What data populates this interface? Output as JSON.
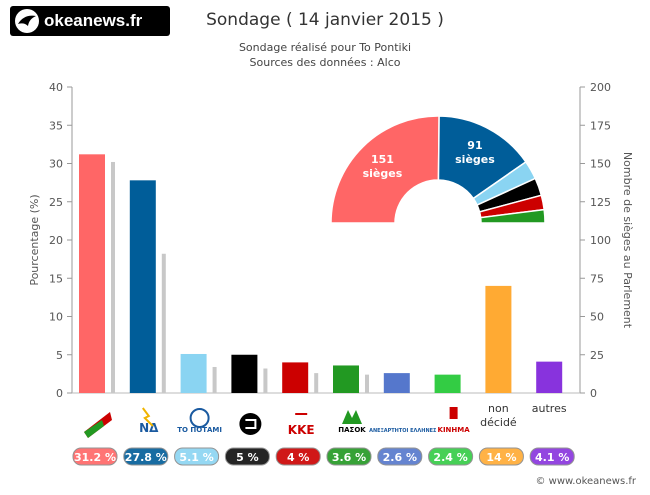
{
  "brand": {
    "logo_text": "okeanews.fr",
    "credit": "© www.okeanews.fr"
  },
  "chart_data": {
    "type": "bar",
    "title": "Sondage ( 14 janvier 2015 )",
    "subtitle_lines": [
      "Sondage réalisé pour To Pontiki",
      "Sources des données : Alco"
    ],
    "ylabel": "Pourcentage (%)",
    "y2label": "Nombre de sièges au Parlement",
    "ylim": [
      0,
      40
    ],
    "y2lim": [
      0,
      200
    ],
    "yticks": [
      0,
      5,
      10,
      15,
      20,
      25,
      30,
      35,
      40
    ],
    "y2ticks": [
      0,
      25,
      50,
      75,
      100,
      125,
      150,
      175,
      200
    ],
    "grid": false,
    "categories": [
      "ΣΥΡΙΖΑ",
      "ΝΔ",
      "ΤΟ ΠΟΤΑΜΙ",
      "ΧΑ",
      "ΚΚΕ",
      "ΠΑΣΟΚ",
      "ΑΝΕΞΑΡΤΗΤΟΙ ΕΛΛΗΝΕΣ",
      "ΚΙΝΗΜΑ",
      "non décidé",
      "autres"
    ],
    "category_text_labels": [
      "",
      "",
      "",
      "",
      "",
      "",
      "",
      "",
      "non décidé",
      "autres"
    ],
    "category_logo_text": [
      "",
      "ΝΔ",
      "ΤΟ ΠΟΤΑΜΙ",
      "",
      "ΚΚΕ",
      "ΠΑΣΟΚ",
      "ΑΝΕΞΑΡΤΗΤΟΙ ΕΛΛΗΝΕΣ",
      "ΚΙΝΗΜΑ",
      "",
      ""
    ],
    "percent_values": [
      31.2,
      27.8,
      5.1,
      5,
      4,
      3.6,
      2.6,
      2.4,
      14,
      4.1
    ],
    "percent_labels": [
      "31.2 %",
      "27.8 %",
      "5.1 %",
      "5 %",
      "4 %",
      "3.6 %",
      "2.6 %",
      "2.4 %",
      "14 %",
      "4.1 %"
    ],
    "seat_values": [
      151,
      91,
      17,
      16,
      13,
      12,
      null,
      null,
      null,
      null
    ],
    "colors": [
      "#ff6666",
      "#005d99",
      "#8ad4f2",
      "#000000",
      "#cc0000",
      "#229922",
      "#5577cc",
      "#33cc44",
      "#ffaa33",
      "#8833dd"
    ],
    "seat_bar_color": "#c8c8c8",
    "hemicycle": {
      "slices": [
        {
          "party": "ΣΥΡΙΖΑ",
          "seats": 151,
          "label_lines": [
            "151",
            "sièges"
          ],
          "color": "#ff6666"
        },
        {
          "party": "ΝΔ",
          "seats": 91,
          "label_lines": [
            "91",
            "sièges"
          ],
          "color": "#005d99"
        },
        {
          "party": "ΤΟ ΠΟΤΑΜΙ",
          "seats": 17,
          "label_lines": [],
          "color": "#8ad4f2"
        },
        {
          "party": "ΧΑ",
          "seats": 16,
          "label_lines": [],
          "color": "#000000"
        },
        {
          "party": "ΚΚΕ",
          "seats": 13,
          "label_lines": [],
          "color": "#cc0000"
        },
        {
          "party": "ΠΑΣΟΚ",
          "seats": 12,
          "label_lines": [],
          "color": "#229922"
        }
      ]
    }
  }
}
